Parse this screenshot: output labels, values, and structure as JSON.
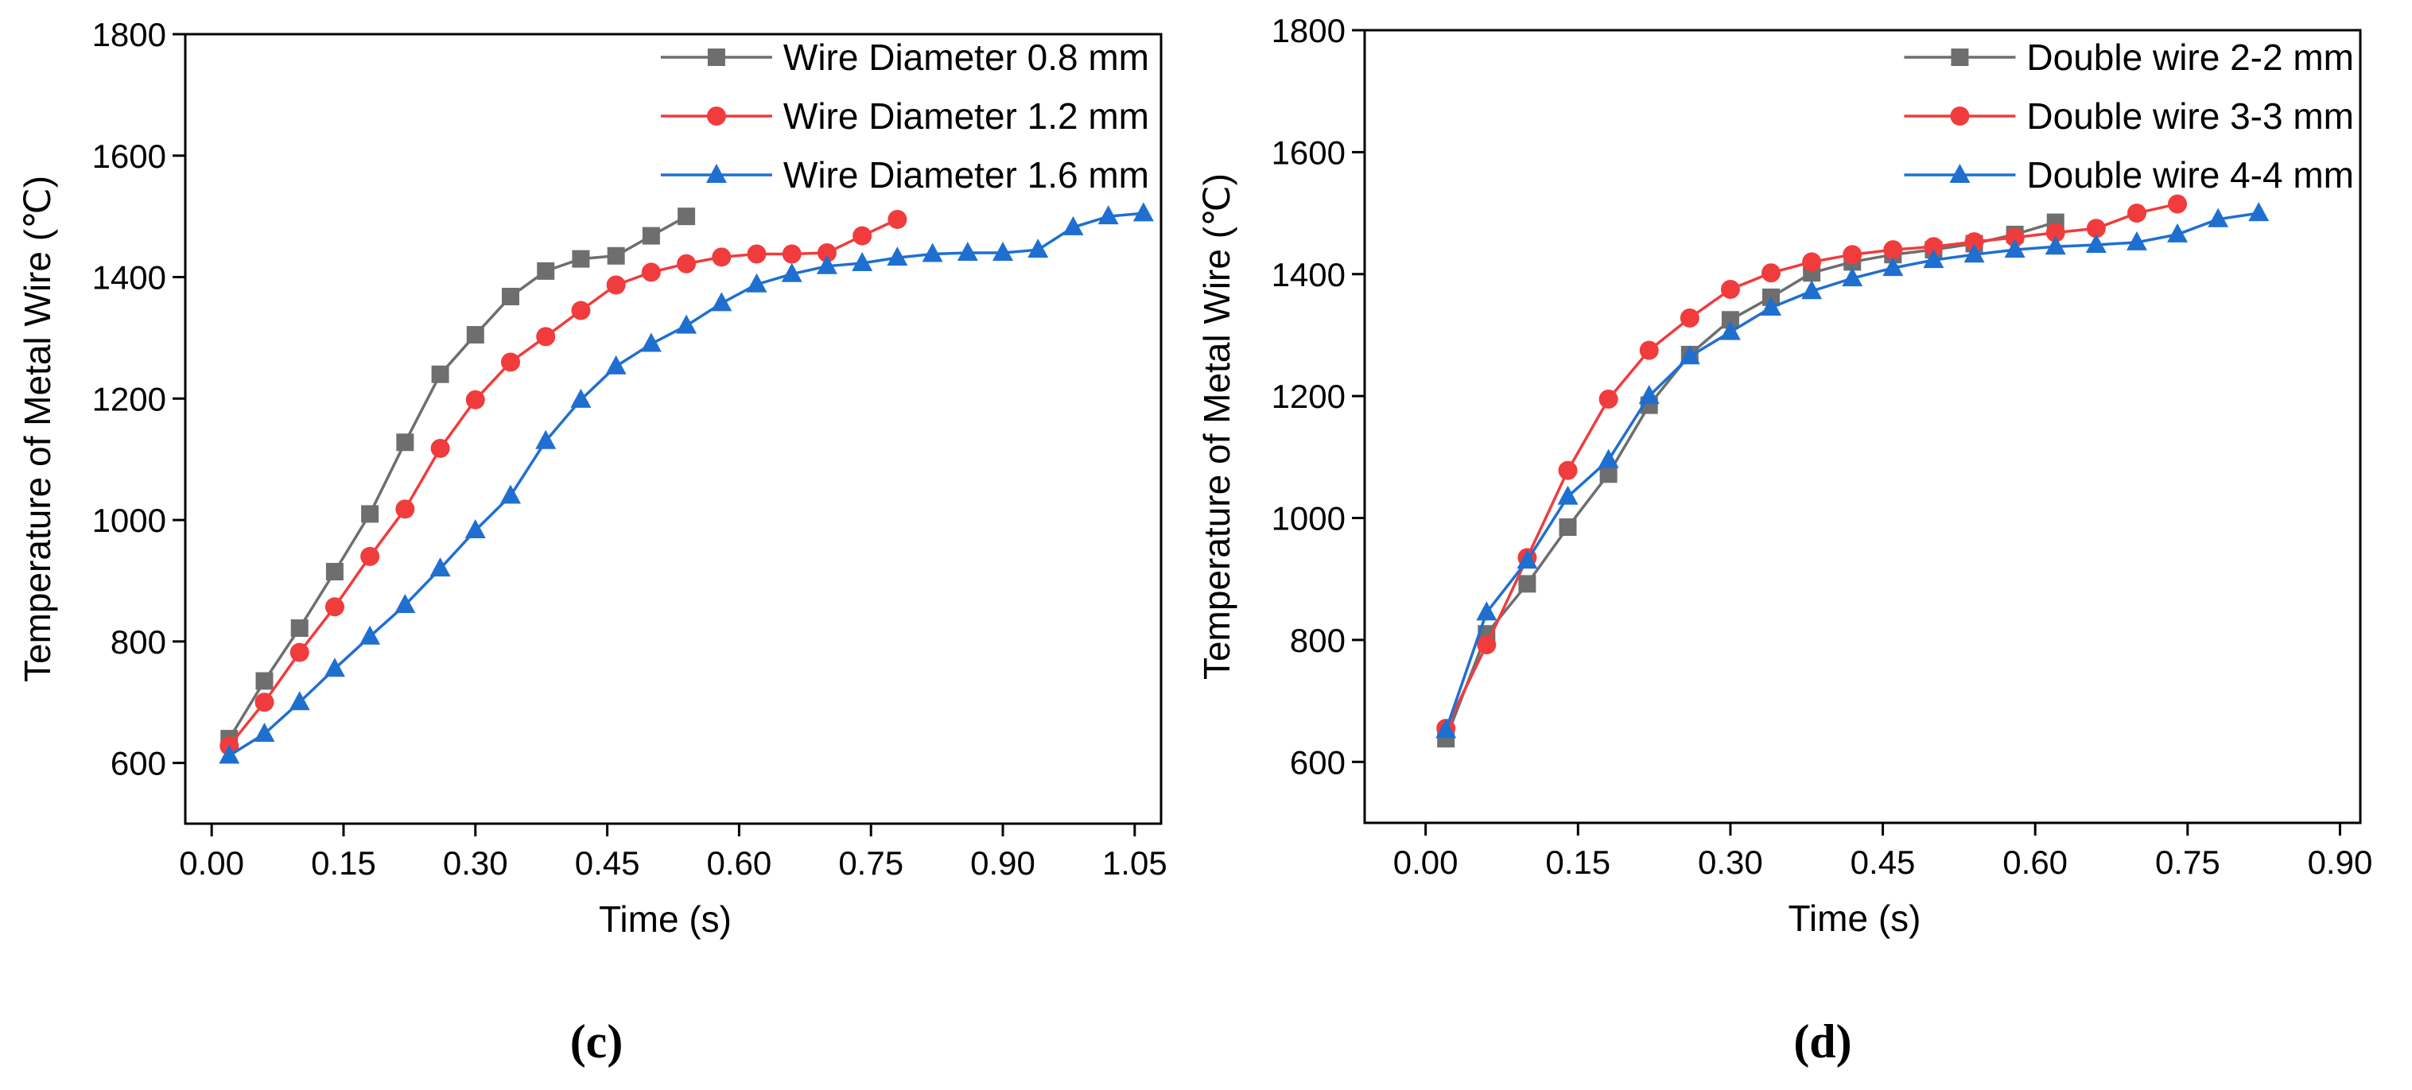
{
  "chart_data": [
    {
      "type": "line",
      "panel_label": "(c)",
      "xlabel": "Time (s)",
      "ylabel": "Temperature of Metal Wire (℃)",
      "xlim": [
        -0.03,
        1.08
      ],
      "ylim": [
        500,
        1800
      ],
      "xticks": [
        0.0,
        0.15,
        0.3,
        0.45,
        0.6,
        0.75,
        0.9,
        1.05
      ],
      "xtick_labels": [
        "0.00",
        "0.15",
        "0.30",
        "0.45",
        "0.60",
        "0.75",
        "0.90",
        "1.05"
      ],
      "yticks": [
        600,
        800,
        1000,
        1200,
        1400,
        1600,
        1800
      ],
      "ytick_labels": [
        "600",
        "800",
        "1000",
        "1200",
        "1400",
        "1600",
        "1800"
      ],
      "legend_position": "top-right",
      "series": [
        {
          "name": "Wire Diameter 0.8 mm",
          "color": "#6e6e6e",
          "marker": "square",
          "x": [
            0.02,
            0.06,
            0.1,
            0.14,
            0.18,
            0.22,
            0.26,
            0.3,
            0.34,
            0.38,
            0.42,
            0.46,
            0.5,
            0.54
          ],
          "y": [
            640,
            735,
            822,
            915,
            1010,
            1128,
            1240,
            1305,
            1368,
            1410,
            1430,
            1435,
            1468,
            1500
          ]
        },
        {
          "name": "Wire Diameter 1.2 mm",
          "color": "#f03c3c",
          "marker": "circle",
          "x": [
            0.02,
            0.06,
            0.1,
            0.14,
            0.18,
            0.22,
            0.26,
            0.3,
            0.34,
            0.38,
            0.42,
            0.46,
            0.5,
            0.54,
            0.58,
            0.62,
            0.66,
            0.7,
            0.74,
            0.78
          ],
          "y": [
            628,
            700,
            782,
            857,
            940,
            1018,
            1118,
            1198,
            1260,
            1302,
            1345,
            1387,
            1408,
            1422,
            1433,
            1438,
            1438,
            1440,
            1468,
            1495
          ]
        },
        {
          "name": "Wire Diameter 1.6 mm",
          "color": "#1f6fd1",
          "marker": "triangle",
          "x": [
            0.02,
            0.06,
            0.1,
            0.14,
            0.18,
            0.22,
            0.26,
            0.3,
            0.34,
            0.38,
            0.42,
            0.46,
            0.5,
            0.54,
            0.58,
            0.62,
            0.66,
            0.7,
            0.74,
            0.78,
            0.82,
            0.86,
            0.9,
            0.94,
            0.98,
            1.02,
            1.06
          ],
          "y": [
            612,
            648,
            700,
            755,
            808,
            860,
            920,
            983,
            1040,
            1130,
            1198,
            1253,
            1290,
            1320,
            1357,
            1388,
            1405,
            1418,
            1423,
            1432,
            1438,
            1440,
            1440,
            1445,
            1482,
            1500,
            1505
          ]
        }
      ]
    },
    {
      "type": "line",
      "panel_label": "(d)",
      "xlabel": "Time (s)",
      "ylabel": "Temperature of Metal Wire (℃)",
      "xlim": [
        -0.06,
        0.92
      ],
      "ylim": [
        500,
        1800
      ],
      "xticks": [
        0.0,
        0.15,
        0.3,
        0.45,
        0.6,
        0.75,
        0.9
      ],
      "xtick_labels": [
        "0.00",
        "0.15",
        "0.30",
        "0.45",
        "0.60",
        "0.75",
        "0.90"
      ],
      "yticks": [
        600,
        800,
        1000,
        1200,
        1400,
        1600,
        1800
      ],
      "ytick_labels": [
        "600",
        "800",
        "1000",
        "1200",
        "1400",
        "1600",
        "1800"
      ],
      "legend_position": "top-right",
      "series": [
        {
          "name": "Double wire 2-2 mm",
          "color": "#6e6e6e",
          "marker": "square",
          "x": [
            0.02,
            0.06,
            0.1,
            0.14,
            0.18,
            0.22,
            0.26,
            0.3,
            0.34,
            0.38,
            0.42,
            0.46,
            0.5,
            0.54,
            0.58,
            0.62
          ],
          "y": [
            638,
            810,
            892,
            985,
            1072,
            1185,
            1268,
            1325,
            1362,
            1402,
            1420,
            1432,
            1440,
            1450,
            1465,
            1485
          ]
        },
        {
          "name": "Double wire 3-3 mm",
          "color": "#f03c3c",
          "marker": "circle",
          "x": [
            0.02,
            0.06,
            0.1,
            0.14,
            0.18,
            0.22,
            0.26,
            0.3,
            0.34,
            0.38,
            0.42,
            0.46,
            0.5,
            0.54,
            0.58,
            0.62,
            0.66,
            0.7,
            0.74
          ],
          "y": [
            655,
            792,
            935,
            1078,
            1195,
            1275,
            1328,
            1375,
            1402,
            1420,
            1432,
            1440,
            1445,
            1453,
            1460,
            1468,
            1475,
            1500,
            1515
          ]
        },
        {
          "name": "Double wire 4-4 mm",
          "color": "#1f6fd1",
          "marker": "triangle",
          "x": [
            0.02,
            0.06,
            0.1,
            0.14,
            0.18,
            0.22,
            0.26,
            0.3,
            0.34,
            0.38,
            0.42,
            0.46,
            0.5,
            0.54,
            0.58,
            0.62,
            0.66,
            0.7,
            0.74,
            0.78,
            0.82
          ],
          "y": [
            652,
            845,
            930,
            1035,
            1095,
            1200,
            1265,
            1305,
            1345,
            1372,
            1393,
            1410,
            1423,
            1432,
            1440,
            1445,
            1448,
            1452,
            1465,
            1490,
            1500
          ]
        }
      ]
    }
  ]
}
